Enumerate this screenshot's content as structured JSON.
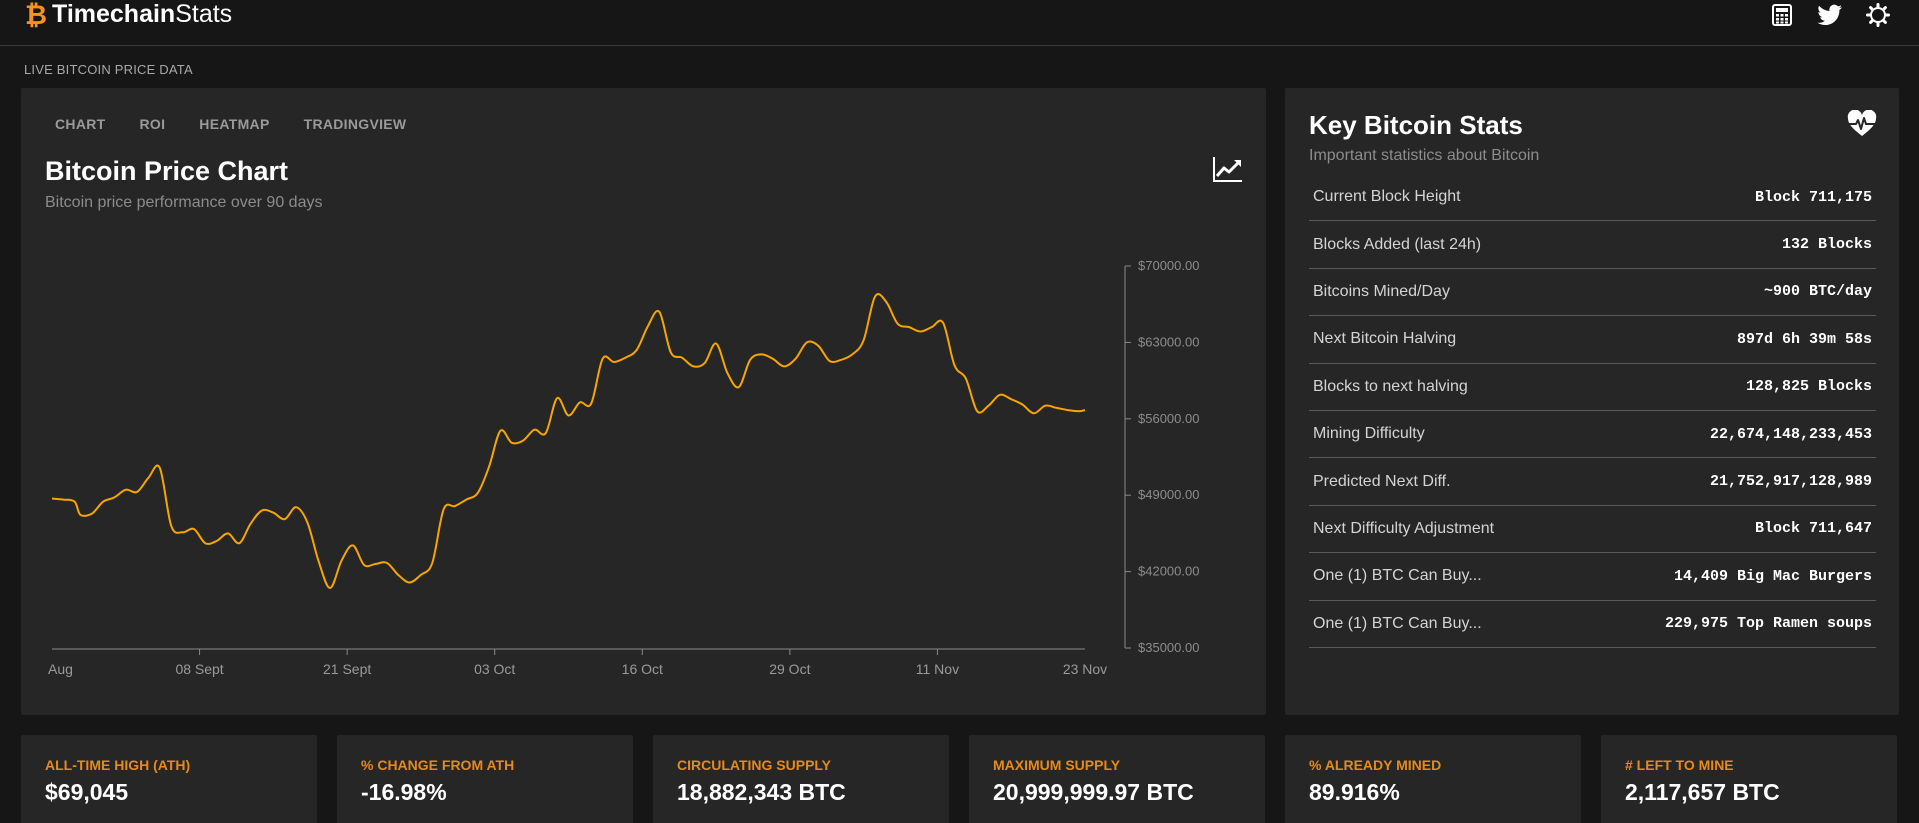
{
  "header": {
    "brand_bold": "Timechain",
    "brand_light": "Stats",
    "icons": [
      "calculator-icon",
      "twitter-icon",
      "settings-gear-icon"
    ]
  },
  "section_label": "LIVE BITCOIN PRICE DATA",
  "chart_panel": {
    "tabs": [
      "CHART",
      "ROI",
      "HEATMAP",
      "TRADINGVIEW"
    ],
    "title": "Bitcoin Price Chart",
    "subtitle": "Bitcoin price performance over 90 days"
  },
  "colors": {
    "accent": "#e8891c",
    "line": "#f7a600",
    "card": "#262626",
    "background": "#161616"
  },
  "chart_data": {
    "type": "line",
    "title": "Bitcoin Price Chart",
    "xlabel": "",
    "ylabel": "",
    "ylim": [
      35000,
      70000
    ],
    "y_ticks": [
      "$70000.00",
      "$63000.00",
      "$56000.00",
      "$49000.00",
      "$42000.00",
      "$35000.00"
    ],
    "y_tick_values": [
      70000,
      63000,
      56000,
      49000,
      42000,
      35000
    ],
    "x_ticks": [
      "Aug",
      "08 Sept",
      "21 Sept",
      "03 Oct",
      "16 Oct",
      "29 Oct",
      "11 Nov",
      "23 Nov"
    ],
    "x_tick_days": [
      0,
      13,
      26,
      39,
      52,
      65,
      78,
      91
    ],
    "grid": false,
    "series": [
      {
        "values": [
          [
            0,
            48700
          ],
          [
            1,
            48600
          ],
          [
            2,
            48400
          ],
          [
            2.5,
            47200
          ],
          [
            3.5,
            47300
          ],
          [
            4.5,
            48400
          ],
          [
            5.5,
            48800
          ],
          [
            6.5,
            49500
          ],
          [
            7.5,
            49300
          ],
          [
            8.5,
            50600
          ],
          [
            9.5,
            51500
          ],
          [
            10.5,
            46200
          ],
          [
            11.5,
            45600
          ],
          [
            12.5,
            45900
          ],
          [
            13.5,
            44600
          ],
          [
            14.5,
            44800
          ],
          [
            15.5,
            45500
          ],
          [
            16.5,
            44600
          ],
          [
            17.5,
            46400
          ],
          [
            18.5,
            47600
          ],
          [
            19.5,
            47400
          ],
          [
            20.5,
            46800
          ],
          [
            21.5,
            47900
          ],
          [
            22.5,
            46500
          ],
          [
            23.5,
            42900
          ],
          [
            24.5,
            40500
          ],
          [
            25.5,
            43000
          ],
          [
            26.5,
            44400
          ],
          [
            27.5,
            42600
          ],
          [
            28.5,
            42700
          ],
          [
            29.5,
            42800
          ],
          [
            30.5,
            41700
          ],
          [
            31.5,
            41000
          ],
          [
            32.5,
            41700
          ],
          [
            33.5,
            42800
          ],
          [
            34.5,
            47700
          ],
          [
            35.5,
            48000
          ],
          [
            36.5,
            48600
          ],
          [
            37.5,
            49200
          ],
          [
            38.5,
            51600
          ],
          [
            39.5,
            54900
          ],
          [
            40.5,
            53800
          ],
          [
            41.5,
            54000
          ],
          [
            42.5,
            55000
          ],
          [
            43.5,
            54700
          ],
          [
            44.5,
            57900
          ],
          [
            45.5,
            56300
          ],
          [
            46.5,
            57500
          ],
          [
            47.5,
            57400
          ],
          [
            48.5,
            61500
          ],
          [
            49.5,
            61200
          ],
          [
            50.5,
            61600
          ],
          [
            51.5,
            62300
          ],
          [
            52.5,
            64500
          ],
          [
            53.5,
            65800
          ],
          [
            54.5,
            62100
          ],
          [
            55.5,
            61600
          ],
          [
            56.5,
            60800
          ],
          [
            57.5,
            61100
          ],
          [
            58.5,
            62900
          ],
          [
            59.5,
            60200
          ],
          [
            60.5,
            58900
          ],
          [
            61.5,
            61400
          ],
          [
            62.5,
            61900
          ],
          [
            63.5,
            61500
          ],
          [
            64.5,
            60800
          ],
          [
            65.5,
            61500
          ],
          [
            66.5,
            63000
          ],
          [
            67.5,
            62700
          ],
          [
            68.5,
            61300
          ],
          [
            69.5,
            61400
          ],
          [
            70.5,
            61900
          ],
          [
            71.5,
            63200
          ],
          [
            72.5,
            67200
          ],
          [
            73.5,
            66700
          ],
          [
            74.5,
            64700
          ],
          [
            75.5,
            64400
          ],
          [
            76.5,
            64000
          ],
          [
            77.5,
            64400
          ],
          [
            78.5,
            64800
          ],
          [
            79.5,
            60900
          ],
          [
            80.5,
            59700
          ],
          [
            81.5,
            56700
          ],
          [
            82.5,
            57200
          ],
          [
            83.5,
            58200
          ],
          [
            84.5,
            57800
          ],
          [
            85.5,
            57300
          ],
          [
            86.5,
            56500
          ],
          [
            87.5,
            57200
          ],
          [
            88.5,
            57000
          ],
          [
            89.5,
            56800
          ],
          [
            90.5,
            56700
          ],
          [
            91,
            56800
          ]
        ]
      }
    ]
  },
  "stats_panel": {
    "title": "Key Bitcoin Stats",
    "subtitle": "Important statistics about Bitcoin",
    "rows": [
      {
        "label": "Current Block Height",
        "value": "Block 711,175"
      },
      {
        "label": "Blocks Added (last 24h)",
        "value": "132 Blocks"
      },
      {
        "label": "Bitcoins Mined/Day",
        "value": "~900 BTC/day"
      },
      {
        "label": "Next Bitcoin Halving",
        "value": "897d 6h 39m 58s"
      },
      {
        "label": "Blocks to next halving",
        "value": "128,825 Blocks"
      },
      {
        "label": "Mining Difficulty",
        "value": "22,674,148,233,453"
      },
      {
        "label": "Predicted Next Diff.",
        "value": "21,752,917,128,989"
      },
      {
        "label": "Next Difficulty Adjustment",
        "value": "Block 711,647"
      },
      {
        "label": "One (1) BTC Can Buy...",
        "value": "14,409 Big Mac Burgers"
      },
      {
        "label": "One (1) BTC Can Buy...",
        "value": "229,975 Top Ramen soups"
      }
    ]
  },
  "summary_cards": [
    {
      "label": "ALL-TIME HIGH (ATH)",
      "value": "$69,045"
    },
    {
      "label": "% CHANGE FROM ATH",
      "value": "-16.98%"
    },
    {
      "label": "CIRCULATING SUPPLY",
      "value": "18,882,343 BTC"
    },
    {
      "label": "MAXIMUM SUPPLY",
      "value": "20,999,999.97 BTC"
    },
    {
      "label": "% ALREADY MINED",
      "value": "89.916%"
    },
    {
      "label": "# LEFT TO MINE",
      "value": "2,117,657 BTC"
    }
  ]
}
